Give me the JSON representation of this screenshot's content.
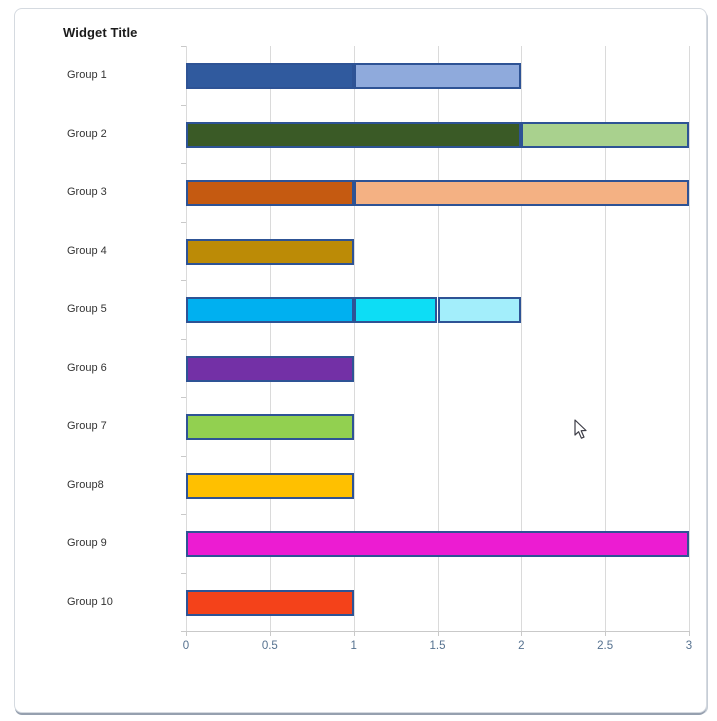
{
  "widget": {
    "title": "Widget Title"
  },
  "colors": {
    "bar_border": "#2e5395",
    "grid": "#dadada",
    "axis": "#c9c9c9",
    "tick_label": "#55718f",
    "category_label": "#333333",
    "card_background": "#ffffff",
    "card_border": "#d5dae0",
    "card_shadow": "#96a0af"
  },
  "cursor": {
    "visible": true,
    "shape": "arrow"
  },
  "chart_data": {
    "type": "bar",
    "orientation": "horizontal",
    "stacked": true,
    "title": "Widget Title",
    "xlabel": "",
    "ylabel": "",
    "xlim": [
      0,
      3
    ],
    "xticks": [
      0,
      0.5,
      1,
      1.5,
      2,
      2.5,
      3
    ],
    "xtick_labels": [
      "0",
      "0.5",
      "1",
      "1.5",
      "2",
      "2.5",
      "3"
    ],
    "grid": true,
    "legend": false,
    "categories": [
      "Group 1",
      "Group 2",
      "Group 3",
      "Group 4",
      "Group 5",
      "Group 6",
      "Group 7",
      "Group8",
      "Group 9",
      "Group 10"
    ],
    "totals": [
      2,
      3,
      3,
      1,
      2,
      1,
      1,
      1,
      3,
      1
    ],
    "bars": [
      {
        "category": "Group 1",
        "segments": [
          {
            "value": 1,
            "color": "#305a9e"
          },
          {
            "value": 1,
            "color": "#8faadc"
          }
        ]
      },
      {
        "category": "Group 2",
        "segments": [
          {
            "value": 2,
            "color": "#3a5a26"
          },
          {
            "value": 1,
            "color": "#a9d18e"
          }
        ]
      },
      {
        "category": "Group 3",
        "segments": [
          {
            "value": 1,
            "color": "#c55a11"
          },
          {
            "value": 2,
            "color": "#f4b183"
          }
        ]
      },
      {
        "category": "Group 4",
        "segments": [
          {
            "value": 1,
            "color": "#bc8b06"
          }
        ]
      },
      {
        "category": "Group 5",
        "segments": [
          {
            "value": 1,
            "color": "#00b0f0"
          },
          {
            "value": 0.5,
            "color": "#0dddf5"
          },
          {
            "value": 0.5,
            "color": "#a3eefb"
          }
        ]
      },
      {
        "category": "Group 6",
        "segments": [
          {
            "value": 1,
            "color": "#7330a6"
          }
        ]
      },
      {
        "category": "Group 7",
        "segments": [
          {
            "value": 1,
            "color": "#92d050"
          }
        ]
      },
      {
        "category": "Group8",
        "segments": [
          {
            "value": 1,
            "color": "#ffc000"
          }
        ]
      },
      {
        "category": "Group 9",
        "segments": [
          {
            "value": 3,
            "color": "#ec1cd2"
          }
        ]
      },
      {
        "category": "Group 10",
        "segments": [
          {
            "value": 1,
            "color": "#f4421a"
          }
        ]
      }
    ]
  }
}
